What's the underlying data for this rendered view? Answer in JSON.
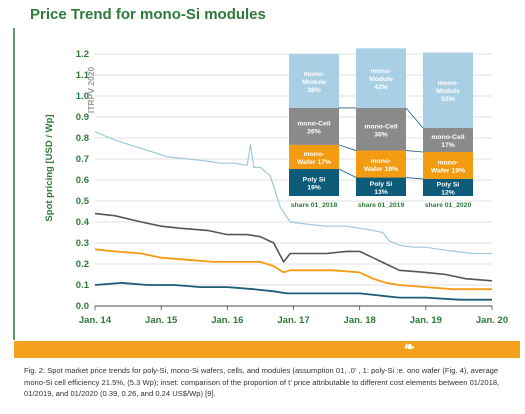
{
  "title": "Price Trend for mono-Si modules",
  "chart_data": {
    "type": "line",
    "title": "Price Trend for mono-Si modules",
    "ylabel": "Spot pricing [USD / Wp]",
    "xlabel": "",
    "watermark": "ITRPV 2020",
    "ylim": [
      0.0,
      1.2
    ],
    "yticks": [
      "0.0",
      "0.1",
      "0.2",
      "0.3",
      "0.4",
      "0.5",
      "0.6",
      "0.7",
      "0.8",
      "0.9",
      "1.0",
      "1.1",
      "1.2"
    ],
    "xlim": [
      2014.0,
      2020.0
    ],
    "xticks": [
      {
        "label": "Jan. 14",
        "x": 2014
      },
      {
        "label": "Jan. 15",
        "x": 2015
      },
      {
        "label": "Jan. 16",
        "x": 2016
      },
      {
        "label": "Jan. 17",
        "x": 2017
      },
      {
        "label": "Jan. 18",
        "x": 2018
      },
      {
        "label": "Jan. 19",
        "x": 2019
      },
      {
        "label": "Jan. 20",
        "x": 2020
      }
    ],
    "grid": "horizontal",
    "series": [
      {
        "color": "#9ec9de",
        "width": 1.2,
        "x": [
          2014,
          2014.15,
          2014.3,
          2014.6,
          2014.9,
          2015.1,
          2015.4,
          2015.7,
          2015.9,
          2016.1,
          2016.3,
          2016.35,
          2016.4,
          2016.5,
          2016.65,
          2016.8,
          2016.95,
          2017.2,
          2017.5,
          2017.8,
          2018.0,
          2018.2,
          2018.35,
          2018.45,
          2018.6,
          2018.8,
          2019.0,
          2019.2,
          2019.45,
          2019.7,
          2020.0
        ],
        "y": [
          0.83,
          0.81,
          0.79,
          0.76,
          0.73,
          0.71,
          0.7,
          0.69,
          0.68,
          0.68,
          0.67,
          0.77,
          0.66,
          0.66,
          0.62,
          0.47,
          0.4,
          0.39,
          0.38,
          0.38,
          0.37,
          0.36,
          0.35,
          0.31,
          0.29,
          0.28,
          0.28,
          0.27,
          0.26,
          0.25,
          0.25
        ]
      },
      {
        "color": "#555555",
        "width": 1.6,
        "x": [
          2014,
          2014.3,
          2014.7,
          2015.0,
          2015.3,
          2015.7,
          2016.0,
          2016.3,
          2016.5,
          2016.7,
          2016.85,
          2016.95,
          2017.2,
          2017.5,
          2017.8,
          2018.0,
          2018.2,
          2018.4,
          2018.6,
          2019.0,
          2019.3,
          2019.6,
          2020.0
        ],
        "y": [
          0.44,
          0.43,
          0.4,
          0.38,
          0.37,
          0.36,
          0.34,
          0.34,
          0.33,
          0.3,
          0.21,
          0.25,
          0.25,
          0.25,
          0.26,
          0.26,
          0.23,
          0.2,
          0.17,
          0.16,
          0.15,
          0.13,
          0.12
        ]
      },
      {
        "color": "#f39c12",
        "width": 1.8,
        "x": [
          2014,
          2014.3,
          2014.7,
          2015.0,
          2015.4,
          2015.8,
          2016.0,
          2016.3,
          2016.5,
          2016.7,
          2016.85,
          2016.95,
          2017.2,
          2017.6,
          2018.0,
          2018.2,
          2018.4,
          2018.6,
          2019.0,
          2019.4,
          2020.0
        ],
        "y": [
          0.27,
          0.26,
          0.25,
          0.23,
          0.22,
          0.21,
          0.21,
          0.21,
          0.21,
          0.19,
          0.16,
          0.17,
          0.17,
          0.17,
          0.16,
          0.13,
          0.11,
          0.1,
          0.09,
          0.08,
          0.08
        ]
      },
      {
        "color": "#1e5c7a",
        "width": 1.8,
        "x": [
          2014,
          2014.4,
          2014.8,
          2015.2,
          2015.6,
          2016.0,
          2016.4,
          2016.7,
          2016.9,
          2017.2,
          2017.6,
          2018.0,
          2018.3,
          2018.6,
          2019.0,
          2019.5,
          2020.0
        ],
        "y": [
          0.1,
          0.11,
          0.1,
          0.1,
          0.09,
          0.09,
          0.08,
          0.07,
          0.06,
          0.06,
          0.06,
          0.06,
          0.05,
          0.04,
          0.04,
          0.03,
          0.03
        ]
      }
    ],
    "inset": {
      "type": "stacked-bar",
      "categories": [
        "share 01_2018",
        "share 01_2019",
        "share 01_2020"
      ],
      "segments": [
        {
          "name": "Poly Si",
          "values": [
            19,
            13,
            12
          ],
          "color": "#0d5b78",
          "text_color": "#ffffff"
        },
        {
          "name": "mono-Wafer",
          "values": [
            17,
            19,
            19
          ],
          "color": "#f39c12",
          "text_color": "#ffffff"
        },
        {
          "name": "mono-Cell",
          "values": [
            26,
            30,
            17
          ],
          "color": "#8a8a8a",
          "text_color": "#ffffff"
        },
        {
          "name": "mono-Module",
          "values": [
            38,
            42,
            53
          ],
          "color": "#a9cfe5",
          "text_color": "#ffffff"
        }
      ],
      "labels": [
        [
          "Poly Si\n19%",
          "mono-\nWafer 17%",
          "mono-Cell\n26%",
          "mono-\nModule\n38%"
        ],
        [
          "Poly Si\n13%",
          "mono-\nWafer 19%",
          "mono-Cell\n30%",
          "mono-\nModule\n42%"
        ],
        [
          "Poly Si\n12%",
          "mono-\nWafer 19%",
          "mono-Cell\n17%",
          "mono-\nModule\n53%"
        ]
      ]
    }
  },
  "caption": "Fig. 2: Spot market price trends for poly-Si, mono-Si wafers, cells, and modules (assumption 01,  .0’ ,  1:    poly-Si :e. ono wafer (Fig. 4), average mono-Si cell efficiency 21.5%, (5.3 Wp); inset: comparison of the proportion of t’  price  attributable to different cost elements between 01/2018, 01/2019, and 01/2020 (0.39, 0.26, and 0.24 US$/Wp) [9].",
  "logo_glyph": "❧"
}
